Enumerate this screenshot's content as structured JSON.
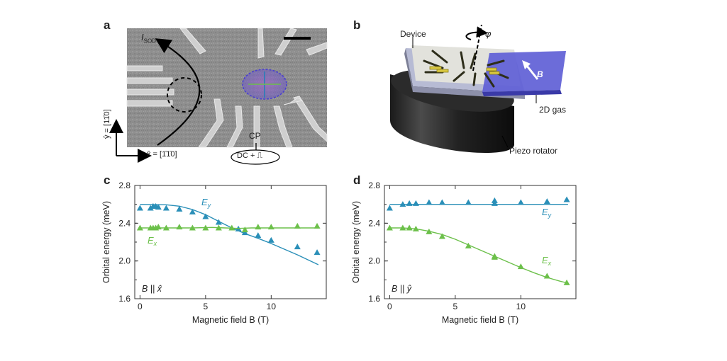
{
  "panels": {
    "a": {
      "letter": "a",
      "current_label": "I",
      "current_sub": "SOD",
      "y_axis_label": "ŷ = [11̄0]",
      "x_axis_label": "x̂ = [1̄1̄0]",
      "cp_label": "CP",
      "dc_label": "DC + ⎍"
    },
    "b": {
      "letter": "b",
      "device_label": "Device",
      "phi_label": "φ",
      "b_label": "B",
      "gas_label": "2D gas",
      "rotator_label": "Piezo rotator"
    },
    "c": {
      "letter": "c"
    },
    "d": {
      "letter": "d"
    }
  },
  "colors": {
    "blue": "#2a8fb8",
    "green": "#6cc04a",
    "gas": "#5f5fd6",
    "axis": "#333333"
  },
  "chart_data": [
    {
      "panel": "c",
      "type": "scatter",
      "xlabel": "Magnetic field B (T)",
      "ylabel": "Orbital energy (meV)",
      "xlim": [
        -0.4,
        14.2
      ],
      "ylim": [
        1.6,
        2.8
      ],
      "xticks": [
        0,
        5,
        10
      ],
      "yticks": [
        1.6,
        2.0,
        2.4,
        2.8
      ],
      "ytick_labels": [
        "1.6",
        "2.0",
        "2.4",
        "2.8"
      ],
      "annotation": "B || x̂",
      "series": [
        {
          "name": "Ey",
          "color": "#2a8fb8",
          "points": [
            [
              0,
              2.56
            ],
            [
              0.8,
              2.56
            ],
            [
              1.0,
              2.58
            ],
            [
              1.2,
              2.58
            ],
            [
              1.4,
              2.57
            ],
            [
              2,
              2.56
            ],
            [
              3,
              2.55
            ],
            [
              4,
              2.52
            ],
            [
              5,
              2.47
            ],
            [
              6,
              2.41
            ],
            [
              7.5,
              2.34
            ],
            [
              8,
              2.3
            ],
            [
              9,
              2.27
            ],
            [
              10,
              2.22
            ],
            [
              12,
              2.15
            ],
            [
              13.5,
              2.09
            ]
          ],
          "fit": [
            [
              0,
              2.6
            ],
            [
              2,
              2.595
            ],
            [
              3,
              2.58
            ],
            [
              4,
              2.545
            ],
            [
              5,
              2.49
            ],
            [
              6,
              2.42
            ],
            [
              7,
              2.35
            ],
            [
              8,
              2.29
            ],
            [
              9,
              2.24
            ],
            [
              10,
              2.185
            ],
            [
              11,
              2.125
            ],
            [
              12,
              2.065
            ],
            [
              13,
              2.0
            ],
            [
              13.6,
              1.96
            ]
          ]
        },
        {
          "name": "Ex",
          "color": "#6cc04a",
          "points": [
            [
              0,
              2.35
            ],
            [
              0.8,
              2.35
            ],
            [
              1.0,
              2.35
            ],
            [
              1.2,
              2.35
            ],
            [
              1.4,
              2.36
            ],
            [
              2,
              2.35
            ],
            [
              3,
              2.36
            ],
            [
              4,
              2.35
            ],
            [
              5,
              2.35
            ],
            [
              6,
              2.35
            ],
            [
              7,
              2.35
            ],
            [
              8,
              2.33
            ],
            [
              9,
              2.36
            ],
            [
              10,
              2.36
            ],
            [
              12,
              2.37
            ],
            [
              13.5,
              2.37
            ]
          ],
          "fit": [
            [
              0,
              2.35
            ],
            [
              4,
              2.35
            ],
            [
              5.5,
              2.355
            ],
            [
              6.5,
              2.35
            ],
            [
              7.5,
              2.345
            ],
            [
              8.5,
              2.35
            ],
            [
              13.6,
              2.35
            ]
          ]
        }
      ]
    },
    {
      "panel": "d",
      "type": "scatter",
      "xlabel": "Magnetic field B (T)",
      "ylabel": "Orbital energy (meV)",
      "xlim": [
        -0.4,
        14.2
      ],
      "ylim": [
        1.6,
        2.8
      ],
      "xticks": [
        0,
        5,
        10
      ],
      "yticks": [
        1.6,
        2.0,
        2.4,
        2.8
      ],
      "ytick_labels": [
        "1.6",
        "2.0",
        "2.4",
        "2.8"
      ],
      "annotation": "B || ŷ",
      "series": [
        {
          "name": "Ey",
          "color": "#2a8fb8",
          "points": [
            [
              0,
              2.56
            ],
            [
              1,
              2.6
            ],
            [
              1.5,
              2.61
            ],
            [
              2,
              2.61
            ],
            [
              3,
              2.62
            ],
            [
              4,
              2.62
            ],
            [
              6,
              2.62
            ],
            [
              8,
              2.64
            ],
            [
              8,
              2.61
            ],
            [
              10,
              2.62
            ],
            [
              12,
              2.63
            ],
            [
              13.5,
              2.65
            ]
          ],
          "fit": [
            [
              0,
              2.6
            ],
            [
              13.6,
              2.6
            ]
          ]
        },
        {
          "name": "Ex",
          "color": "#6cc04a",
          "points": [
            [
              0,
              2.35
            ],
            [
              1,
              2.35
            ],
            [
              1.5,
              2.35
            ],
            [
              2,
              2.34
            ],
            [
              3,
              2.31
            ],
            [
              4,
              2.26
            ],
            [
              6,
              2.16
            ],
            [
              8,
              2.05
            ],
            [
              8,
              2.04
            ],
            [
              10,
              1.94
            ],
            [
              12,
              1.84
            ],
            [
              13.5,
              1.77
            ]
          ],
          "fit": [
            [
              0,
              2.35
            ],
            [
              1,
              2.35
            ],
            [
              2,
              2.34
            ],
            [
              3,
              2.315
            ],
            [
              4,
              2.28
            ],
            [
              5,
              2.23
            ],
            [
              6,
              2.17
            ],
            [
              7,
              2.11
            ],
            [
              8,
              2.05
            ],
            [
              9,
              1.99
            ],
            [
              10,
              1.93
            ],
            [
              11,
              1.875
            ],
            [
              12,
              1.825
            ],
            [
              13,
              1.785
            ],
            [
              13.6,
              1.765
            ]
          ]
        }
      ]
    }
  ]
}
